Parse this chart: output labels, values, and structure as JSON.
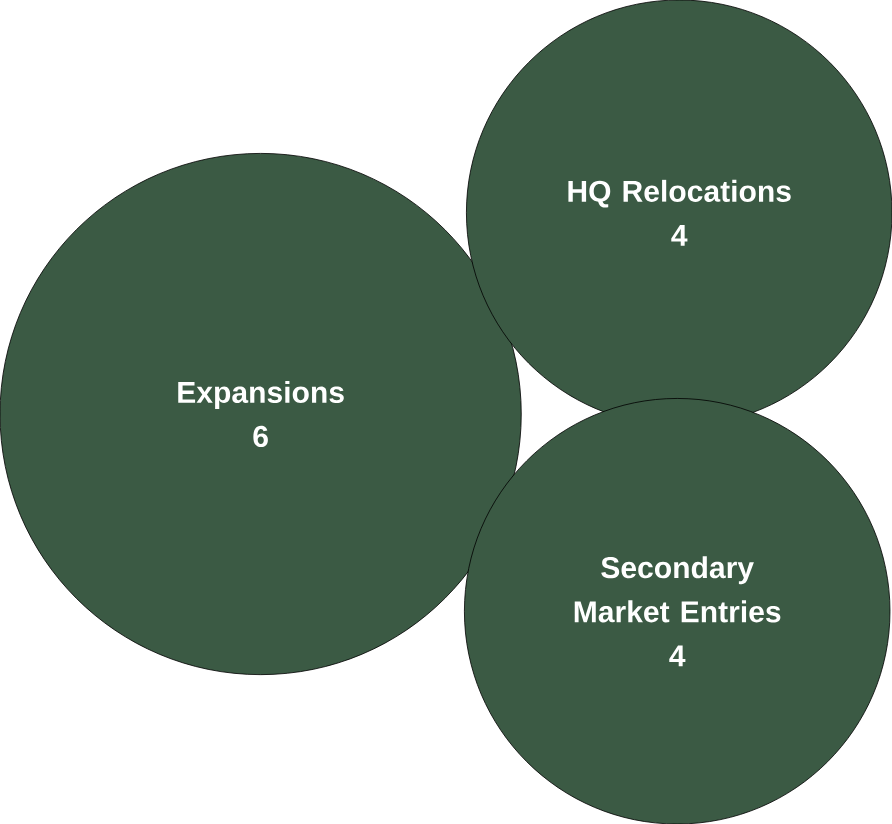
{
  "chart_data": {
    "type": "other",
    "categories": [
      "Expansions",
      "HQ Relocations",
      "Secondary Market Entries"
    ],
    "values": [
      6,
      4,
      4
    ],
    "color": "#3b5a44",
    "data_labels": true
  }
}
